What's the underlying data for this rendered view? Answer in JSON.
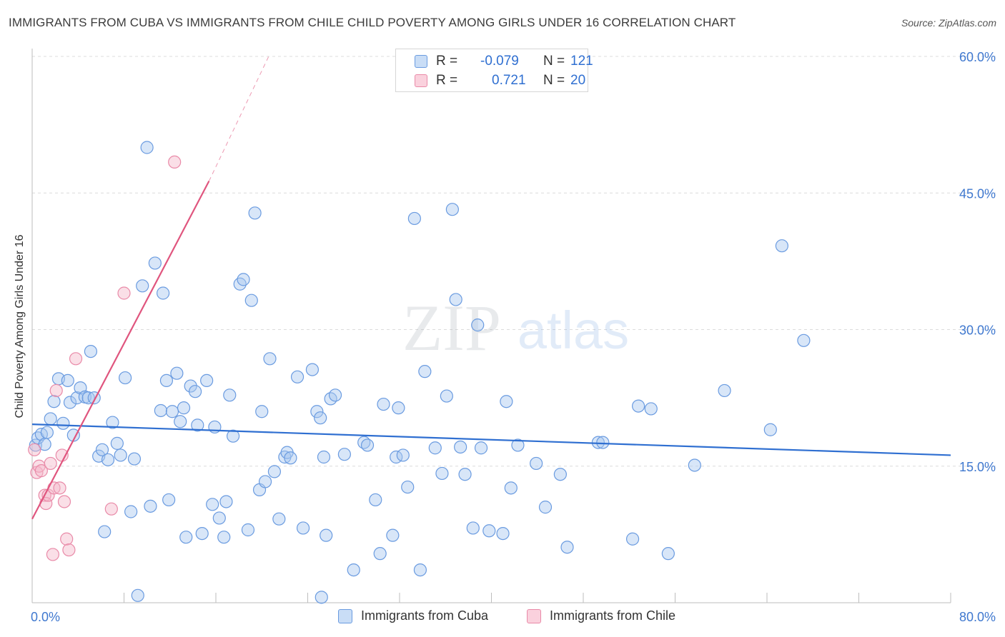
{
  "title": "IMMIGRANTS FROM CUBA VS IMMIGRANTS FROM CHILE CHILD POVERTY AMONG GIRLS UNDER 16 CORRELATION CHART",
  "source": "Source: ZipAtlas.com",
  "watermark": {
    "zip": "ZIP",
    "atlas": "atlas"
  },
  "legend": {
    "rows": [
      {
        "r_label": "R =",
        "r_value": "-0.079",
        "n_label": "N =",
        "n_value": "121",
        "color": "#a8c8f0"
      },
      {
        "r_label": "R =",
        "r_value": "0.721",
        "n_label": "N =",
        "n_value": "20",
        "color": "#f5b8ca"
      }
    ]
  },
  "bottom_legend": [
    {
      "label": "Immigrants from Cuba",
      "color": "#a8c8f0"
    },
    {
      "label": "Immigrants from Chile",
      "color": "#f5b8ca"
    }
  ],
  "colors": {
    "cuba_fill": "#a8c8f0",
    "cuba_stroke": "#6a9be0",
    "cuba_line": "#2f6fd1",
    "chile_fill": "#f5b8ca",
    "chile_stroke": "#e98aa8",
    "chile_line": "#e0557e",
    "tick_label": "#3f78cf",
    "grid": "#dcdcdc"
  },
  "chart_data": {
    "type": "scatter",
    "title": "IMMIGRANTS FROM CUBA VS IMMIGRANTS FROM CHILE CHILD POVERTY AMONG GIRLS UNDER 16 CORRELATION CHART",
    "xlabel": "",
    "ylabel": "Child Poverty Among Girls Under 16",
    "xlim": [
      0,
      80
    ],
    "ylim": [
      0,
      60
    ],
    "x_ticks": [
      "0.0%",
      "80.0%"
    ],
    "y_ticks": [
      {
        "value": 15,
        "label": "15.0%"
      },
      {
        "value": 30,
        "label": "30.0%"
      },
      {
        "value": 45,
        "label": "45.0%"
      },
      {
        "value": 60,
        "label": "60.0%"
      }
    ],
    "grid": true,
    "legend_position": "top-center",
    "series": [
      {
        "name": "Immigrants from Cuba",
        "r": -0.079,
        "n": 121,
        "trend": {
          "x1": 0,
          "y1": 19.6,
          "x2": 80,
          "y2": 16.2
        },
        "points": [
          [
            0.3,
            17.3
          ],
          [
            0.5,
            18.1
          ],
          [
            0.8,
            18.5
          ],
          [
            1.1,
            17.4
          ],
          [
            1.3,
            18.7
          ],
          [
            1.6,
            20.2
          ],
          [
            1.9,
            22.1
          ],
          [
            2.3,
            24.6
          ],
          [
            2.7,
            19.7
          ],
          [
            3.1,
            24.4
          ],
          [
            3.3,
            22.0
          ],
          [
            3.6,
            18.4
          ],
          [
            3.9,
            22.5
          ],
          [
            4.2,
            23.6
          ],
          [
            4.6,
            22.6
          ],
          [
            4.9,
            22.5
          ],
          [
            5.1,
            27.6
          ],
          [
            5.4,
            22.5
          ],
          [
            5.8,
            16.1
          ],
          [
            6.1,
            16.8
          ],
          [
            6.3,
            7.8
          ],
          [
            6.6,
            15.7
          ],
          [
            7.0,
            19.8
          ],
          [
            7.4,
            17.5
          ],
          [
            7.7,
            16.2
          ],
          [
            8.1,
            24.7
          ],
          [
            8.6,
            10.0
          ],
          [
            8.9,
            15.8
          ],
          [
            9.2,
            0.8
          ],
          [
            9.6,
            34.8
          ],
          [
            10.0,
            50.0
          ],
          [
            10.3,
            10.6
          ],
          [
            10.7,
            37.3
          ],
          [
            11.2,
            21.1
          ],
          [
            11.4,
            34.0
          ],
          [
            11.7,
            24.4
          ],
          [
            11.9,
            11.3
          ],
          [
            12.2,
            21.0
          ],
          [
            12.6,
            25.2
          ],
          [
            12.9,
            19.9
          ],
          [
            13.2,
            21.4
          ],
          [
            13.4,
            7.2
          ],
          [
            13.8,
            23.8
          ],
          [
            14.2,
            23.2
          ],
          [
            14.4,
            19.5
          ],
          [
            14.8,
            7.6
          ],
          [
            15.2,
            24.4
          ],
          [
            15.7,
            10.8
          ],
          [
            15.9,
            19.3
          ],
          [
            16.3,
            9.3
          ],
          [
            16.7,
            7.2
          ],
          [
            16.9,
            11.1
          ],
          [
            17.2,
            22.8
          ],
          [
            17.5,
            18.3
          ],
          [
            18.1,
            35.0
          ],
          [
            18.4,
            35.5
          ],
          [
            18.8,
            8.0
          ],
          [
            19.1,
            33.2
          ],
          [
            19.4,
            42.8
          ],
          [
            19.8,
            12.4
          ],
          [
            20.0,
            21.0
          ],
          [
            20.3,
            13.3
          ],
          [
            20.7,
            26.8
          ],
          [
            21.1,
            14.4
          ],
          [
            21.5,
            9.2
          ],
          [
            22.0,
            16.0
          ],
          [
            22.2,
            16.5
          ],
          [
            22.5,
            15.9
          ],
          [
            23.1,
            24.8
          ],
          [
            23.6,
            8.2
          ],
          [
            24.4,
            25.6
          ],
          [
            24.8,
            21.0
          ],
          [
            25.1,
            20.3
          ],
          [
            25.4,
            16.0
          ],
          [
            25.6,
            7.4
          ],
          [
            26.0,
            22.4
          ],
          [
            26.4,
            22.8
          ],
          [
            27.2,
            16.3
          ],
          [
            28.0,
            3.6
          ],
          [
            28.9,
            17.6
          ],
          [
            29.2,
            17.3
          ],
          [
            29.9,
            11.3
          ],
          [
            30.3,
            5.4
          ],
          [
            30.6,
            21.8
          ],
          [
            31.4,
            7.4
          ],
          [
            31.7,
            16.0
          ],
          [
            31.9,
            21.4
          ],
          [
            32.3,
            16.2
          ],
          [
            32.7,
            12.7
          ],
          [
            33.3,
            42.2
          ],
          [
            33.8,
            3.6
          ],
          [
            34.2,
            25.4
          ],
          [
            35.1,
            17.0
          ],
          [
            35.7,
            14.2
          ],
          [
            36.1,
            22.7
          ],
          [
            36.6,
            43.2
          ],
          [
            36.9,
            33.3
          ],
          [
            37.3,
            17.1
          ],
          [
            37.7,
            14.1
          ],
          [
            38.4,
            8.2
          ],
          [
            38.8,
            30.5
          ],
          [
            39.1,
            17.0
          ],
          [
            39.8,
            7.9
          ],
          [
            41.0,
            7.6
          ],
          [
            41.3,
            22.1
          ],
          [
            41.7,
            12.6
          ],
          [
            42.3,
            17.3
          ],
          [
            43.9,
            15.3
          ],
          [
            44.7,
            10.5
          ],
          [
            46.0,
            14.1
          ],
          [
            46.6,
            6.1
          ],
          [
            49.3,
            17.6
          ],
          [
            49.7,
            17.6
          ],
          [
            52.3,
            7.0
          ],
          [
            52.8,
            21.6
          ],
          [
            53.9,
            21.3
          ],
          [
            55.4,
            5.4
          ],
          [
            57.7,
            15.1
          ],
          [
            60.3,
            23.3
          ],
          [
            64.3,
            19.0
          ],
          [
            65.3,
            39.2
          ],
          [
            67.2,
            28.8
          ],
          [
            25.2,
            0.6
          ]
        ]
      },
      {
        "name": "Immigrants from Chile",
        "r": 0.721,
        "n": 20,
        "trend": {
          "x1": 0,
          "y1": 9.2,
          "x2": 15.4,
          "y2": 46.3,
          "dash_to": {
            "x": 20.6,
            "y": 60
          }
        },
        "points": [
          [
            0.2,
            16.8
          ],
          [
            0.4,
            14.3
          ],
          [
            0.6,
            15.0
          ],
          [
            0.8,
            14.5
          ],
          [
            1.1,
            11.8
          ],
          [
            1.2,
            10.9
          ],
          [
            1.4,
            11.8
          ],
          [
            1.6,
            15.3
          ],
          [
            1.8,
            5.3
          ],
          [
            1.9,
            12.6
          ],
          [
            2.1,
            23.3
          ],
          [
            2.4,
            12.6
          ],
          [
            2.6,
            16.2
          ],
          [
            2.8,
            11.1
          ],
          [
            3.0,
            7.0
          ],
          [
            3.2,
            5.8
          ],
          [
            3.8,
            26.8
          ],
          [
            6.9,
            10.3
          ],
          [
            8.0,
            34.0
          ],
          [
            12.4,
            48.4
          ]
        ]
      }
    ]
  }
}
